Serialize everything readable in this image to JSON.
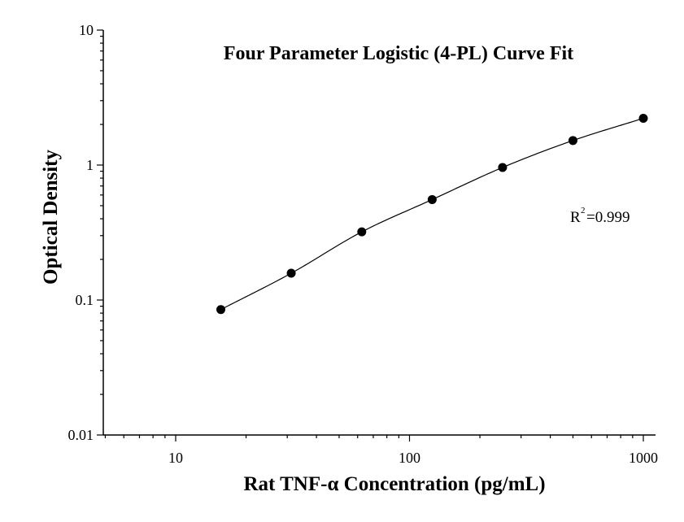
{
  "chart_data": {
    "type": "scatter",
    "title": "Four Parameter Logistic (4-PL) Curve Fit",
    "xlabel": "Rat TNF-α Concentration (pg/mL)",
    "ylabel": "Optical Density",
    "xscale": "log",
    "yscale": "log",
    "xlim": [
      5,
      1100
    ],
    "ylim": [
      0.01,
      10
    ],
    "x_ticks": [
      "10",
      "100",
      "1000"
    ],
    "y_ticks": [
      "0.01",
      "0.1",
      "1",
      "10"
    ],
    "series": [
      {
        "x": [
          15.6,
          31.2,
          62.5,
          125,
          250,
          500,
          1000
        ],
        "y": [
          0.085,
          0.158,
          0.32,
          0.555,
          0.96,
          1.52,
          2.22
        ]
      }
    ],
    "fit": "4-PL curve",
    "annotation": {
      "r_label": "R",
      "r_exp": "2",
      "r_value": "=0.999"
    },
    "grid": false,
    "legend": "none"
  }
}
